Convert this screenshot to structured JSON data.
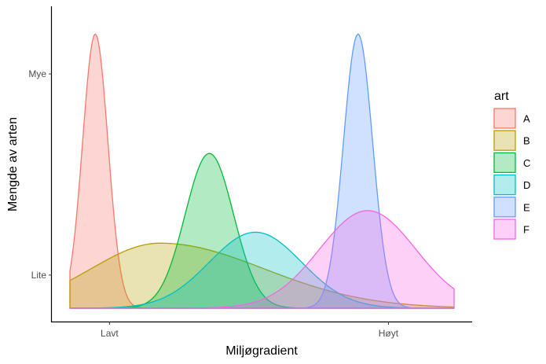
{
  "chart_data": {
    "type": "area",
    "title": "",
    "xlabel": "Miljøgradient",
    "ylabel": "Mengde av arten",
    "xlim": [
      0,
      1
    ],
    "ylim": [
      0,
      1
    ],
    "x_ticks": [
      {
        "value": 0.103,
        "label": "Lavt"
      },
      {
        "value": 0.829,
        "label": "Høyt"
      }
    ],
    "y_ticks": [
      {
        "value": 0.115,
        "label": "Lite"
      },
      {
        "value": 0.814,
        "label": "Mye"
      }
    ],
    "legend": {
      "title": "art",
      "position": "right"
    },
    "series": [
      {
        "name": "A",
        "shape": "gaussian",
        "mean": 0.066,
        "sd": 0.033,
        "peak": 0.953,
        "color": "#F8766D"
      },
      {
        "name": "B",
        "shape": "skewed",
        "mode": 0.235,
        "sd_left": 0.18,
        "sd_right": 0.27,
        "peak": 0.226,
        "color": "#B79F00"
      },
      {
        "name": "C",
        "shape": "gaussian",
        "mean": 0.363,
        "sd": 0.063,
        "peak": 0.538,
        "color": "#00BA38"
      },
      {
        "name": "D",
        "shape": "gaussian",
        "mean": 0.483,
        "sd": 0.12,
        "peak": 0.264,
        "color": "#00BFC4"
      },
      {
        "name": "E",
        "shape": "gaussian",
        "mean": 0.75,
        "sd": 0.038,
        "peak": 0.953,
        "color": "#619CFF"
      },
      {
        "name": "F",
        "shape": "gaussian",
        "mean": 0.775,
        "sd": 0.125,
        "peak": 0.339,
        "color": "#F564E3"
      }
    ],
    "curve_x_range": [
      0,
      1
    ]
  }
}
